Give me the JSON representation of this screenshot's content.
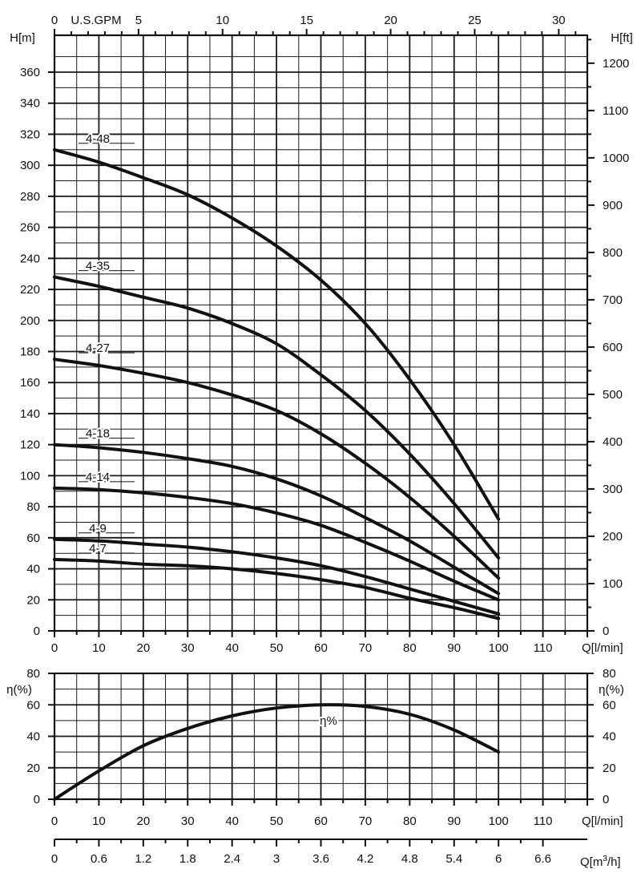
{
  "chart_data": [
    {
      "type": "line",
      "id": "head",
      "top_axis": {
        "label": "U.S.GPM",
        "ticks": [
          "0",
          "5",
          "10",
          "15",
          "20",
          "25",
          "30"
        ]
      },
      "ylabel_left": "H[m]",
      "ylabel_right": "H[ft]",
      "xlabel": "Q[l/min]",
      "xlim": [
        0,
        120
      ],
      "ylim": [
        0,
        370
      ],
      "x_ticks": [
        "0",
        "10",
        "20",
        "30",
        "40",
        "50",
        "60",
        "70",
        "80",
        "90",
        "100",
        "110"
      ],
      "y_ticks": [
        "0",
        "20",
        "40",
        "60",
        "80",
        "100",
        "120",
        "140",
        "160",
        "180",
        "200",
        "220",
        "240",
        "260",
        "280",
        "300",
        "320",
        "340",
        "360"
      ],
      "y2_ticks": [
        "0",
        "100",
        "200",
        "300",
        "400",
        "500",
        "600",
        "700",
        "800",
        "900",
        "1000",
        "1100",
        "1200"
      ],
      "grid": true,
      "series": [
        {
          "name": "4-48",
          "x": [
            0,
            10,
            20,
            30,
            40,
            50,
            60,
            70,
            80,
            90,
            100
          ],
          "y": [
            310,
            302,
            292,
            281,
            266,
            248,
            226,
            198,
            162,
            120,
            72
          ]
        },
        {
          "name": "4-35",
          "x": [
            0,
            10,
            20,
            30,
            40,
            50,
            60,
            70,
            80,
            90,
            100
          ],
          "y": [
            228,
            222,
            215,
            208,
            198,
            185,
            165,
            142,
            114,
            82,
            47
          ]
        },
        {
          "name": "4-27",
          "x": [
            0,
            10,
            20,
            30,
            40,
            50,
            60,
            70,
            80,
            90,
            100
          ],
          "y": [
            175,
            171,
            166,
            160,
            152,
            142,
            127,
            108,
            86,
            61,
            34
          ]
        },
        {
          "name": "4-18",
          "x": [
            0,
            10,
            20,
            30,
            40,
            50,
            60,
            70,
            80,
            90,
            100
          ],
          "y": [
            120,
            118,
            115,
            111,
            106,
            98,
            87,
            73,
            58,
            41,
            24
          ]
        },
        {
          "name": "4-14",
          "x": [
            0,
            10,
            20,
            30,
            40,
            50,
            60,
            70,
            80,
            90,
            100
          ],
          "y": [
            92,
            91,
            89,
            86,
            82,
            76,
            68,
            57,
            45,
            32,
            20
          ]
        },
        {
          "name": "4-9",
          "x": [
            0,
            10,
            20,
            30,
            40,
            50,
            60,
            70,
            80,
            90,
            100
          ],
          "y": [
            59,
            58,
            56,
            54,
            51,
            47,
            42,
            35,
            27,
            19,
            11
          ]
        },
        {
          "name": "4-7",
          "x": [
            0,
            10,
            20,
            30,
            40,
            50,
            60,
            70,
            80,
            90,
            100
          ],
          "y": [
            46,
            45,
            43,
            42,
            40,
            37,
            33,
            28,
            21,
            15,
            8
          ]
        }
      ]
    },
    {
      "type": "line",
      "id": "efficiency",
      "ylabel_left": "η(%)",
      "ylabel_right": "η(%)",
      "xlabel": "Q[l/min]",
      "xlim": [
        0,
        120
      ],
      "ylim": [
        0,
        80
      ],
      "x_ticks": [
        "0",
        "10",
        "20",
        "30",
        "40",
        "50",
        "60",
        "70",
        "80",
        "90",
        "100",
        "110"
      ],
      "y_ticks": [
        "0",
        "20",
        "40",
        "60",
        "80"
      ],
      "grid": true,
      "series": [
        {
          "name": "η%",
          "x": [
            0,
            10,
            20,
            30,
            40,
            50,
            60,
            70,
            80,
            90,
            100
          ],
          "y": [
            0,
            18,
            34,
            45,
            53,
            58,
            60,
            59,
            54,
            44,
            30
          ]
        }
      ]
    },
    {
      "type": "axis",
      "id": "flow_m3h",
      "xlabel": "Q[m3/h]",
      "ticks": [
        "0",
        "0.6",
        "1.2",
        "1.8",
        "2.4",
        "3",
        "3.6",
        "4.2",
        "4.8",
        "5.4",
        "6",
        "6.6"
      ]
    }
  ]
}
